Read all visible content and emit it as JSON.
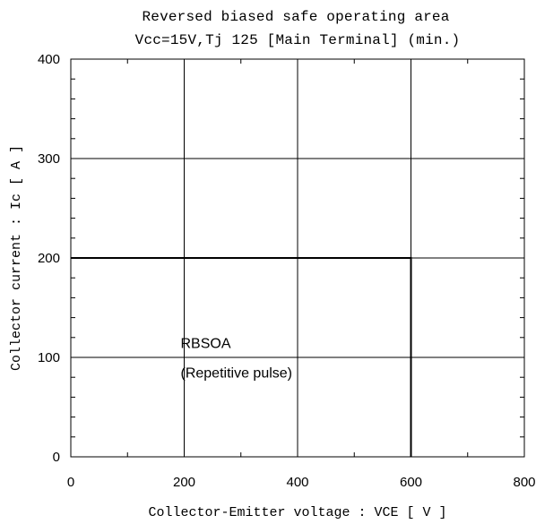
{
  "chart_data": {
    "type": "line",
    "title": "Reversed biased safe operating area",
    "subtitle": "Vcc=15V,Tj  125  [Main Terminal] (min.)",
    "xlabel": "Collector-Emitter voltage  :  VCE  [ V ]",
    "ylabel": "Collector current : Ic [ A ]",
    "xlim": [
      0,
      800
    ],
    "ylim": [
      0,
      400
    ],
    "x_ticks": [
      "0",
      "200",
      "400",
      "600",
      "800"
    ],
    "y_ticks": [
      "0",
      "100",
      "200",
      "300",
      "400"
    ],
    "grid": true,
    "series": [
      {
        "x": [
          0,
          600,
          600
        ],
        "y": [
          200,
          200,
          0
        ],
        "color": "#000000"
      }
    ],
    "annotations": [
      {
        "text": "RBSOA",
        "x": 200,
        "y": 115
      },
      {
        "text": "(Repetitive pulse)",
        "x": 200,
        "y": 85
      }
    ]
  }
}
